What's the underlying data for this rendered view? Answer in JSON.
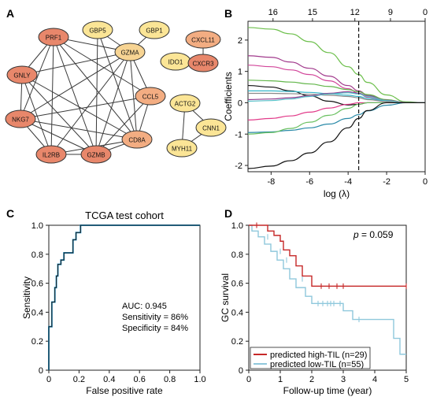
{
  "panels": {
    "A": {
      "label": "A",
      "node_colors": {
        "dark": "#e8876b",
        "mid": "#f3ad82",
        "light": "#f7d493",
        "yellow": "#fbe596"
      },
      "nodes": [
        {
          "id": "prf1",
          "label": "PRF1",
          "tone": "dark"
        },
        {
          "id": "gbp5",
          "label": "GBP5",
          "tone": "yellow"
        },
        {
          "id": "gbp1",
          "label": "GBP1",
          "tone": "yellow"
        },
        {
          "id": "gzma",
          "label": "GZMA",
          "tone": "light"
        },
        {
          "id": "cxcl11",
          "label": "CXCL11",
          "tone": "mid"
        },
        {
          "id": "gnly",
          "label": "GNLY",
          "tone": "dark"
        },
        {
          "id": "ido1",
          "label": "IDO1",
          "tone": "yellow"
        },
        {
          "id": "cxcr3",
          "label": "CXCR3",
          "tone": "dark"
        },
        {
          "id": "ccl5",
          "label": "CCL5",
          "tone": "mid"
        },
        {
          "id": "actg2",
          "label": "ACTG2",
          "tone": "yellow"
        },
        {
          "id": "nkg7",
          "label": "NKG7",
          "tone": "dark"
        },
        {
          "id": "cnn1",
          "label": "CNN1",
          "tone": "yellow"
        },
        {
          "id": "cd8a",
          "label": "CD8A",
          "tone": "mid"
        },
        {
          "id": "il2rb",
          "label": "IL2RB",
          "tone": "dark"
        },
        {
          "id": "gzmb",
          "label": "GZMB",
          "tone": "dark"
        },
        {
          "id": "myh11",
          "label": "MYH11",
          "tone": "yellow"
        }
      ],
      "edges": [
        [
          "prf1",
          "gnly"
        ],
        [
          "prf1",
          "nkg7"
        ],
        [
          "prf1",
          "il2rb"
        ],
        [
          "prf1",
          "gzmb"
        ],
        [
          "prf1",
          "gzma"
        ],
        [
          "prf1",
          "cd8a"
        ],
        [
          "prf1",
          "ccl5"
        ],
        [
          "gnly",
          "nkg7"
        ],
        [
          "gnly",
          "il2rb"
        ],
        [
          "gnly",
          "gzmb"
        ],
        [
          "gnly",
          "gzma"
        ],
        [
          "gnly",
          "cd8a"
        ],
        [
          "nkg7",
          "il2rb"
        ],
        [
          "nkg7",
          "gzmb"
        ],
        [
          "nkg7",
          "gzma"
        ],
        [
          "nkg7",
          "cd8a"
        ],
        [
          "nkg7",
          "ccl5"
        ],
        [
          "il2rb",
          "gzmb"
        ],
        [
          "il2rb",
          "gzma"
        ],
        [
          "il2rb",
          "cd8a"
        ],
        [
          "gzmb",
          "gzma"
        ],
        [
          "gzmb",
          "cd8a"
        ],
        [
          "gzmb",
          "ccl5"
        ],
        [
          "gzmb",
          "gbp5"
        ],
        [
          "gzma",
          "cd8a"
        ],
        [
          "gzma",
          "ccl5"
        ],
        [
          "gzma",
          "gbp5"
        ],
        [
          "gzma",
          "gbp1"
        ],
        [
          "cd8a",
          "ccl5"
        ],
        [
          "cd8a",
          "gbp5"
        ],
        [
          "cxcl11",
          "cxcr3"
        ],
        [
          "actg2",
          "cnn1"
        ],
        [
          "actg2",
          "myh11"
        ],
        [
          "cnn1",
          "myh11"
        ]
      ]
    },
    "B": {
      "label": "B",
      "chart_data": {
        "type": "line",
        "xlabel": "log (λ)",
        "ylabel": "Coefficients",
        "xlim": [
          -9.2,
          0
        ],
        "ylim": [
          -2.2,
          2.6
        ],
        "xticks": [
          -8,
          -6,
          -4,
          -2,
          0
        ],
        "yticks": [
          -2,
          -1,
          0,
          1,
          2
        ],
        "top_axis_ticks": [
          {
            "x": -7.9,
            "label": "16"
          },
          {
            "x": -5.85,
            "label": "15"
          },
          {
            "x": -3.65,
            "label": "12"
          },
          {
            "x": -1.8,
            "label": "9"
          },
          {
            "x": 0,
            "label": "0"
          }
        ],
        "selected_log_lambda": -3.45,
        "x": [
          -9.2,
          -8,
          -7,
          -6,
          -5,
          -4,
          -3.45,
          -3,
          -2,
          -1,
          0
        ],
        "series": [
          {
            "color": "#6cbf4b",
            "values": [
              2.4,
              2.35,
              2.2,
              1.95,
              1.6,
              1.15,
              0.9,
              0.65,
              0.25,
              0.03,
              0
            ]
          },
          {
            "color": "#a13a8c",
            "values": [
              1.5,
              1.45,
              1.3,
              1.1,
              0.85,
              0.55,
              0.38,
              0.25,
              0.08,
              0,
              0
            ]
          },
          {
            "color": "#d2469a",
            "values": [
              1.2,
              1.15,
              1.05,
              0.9,
              0.7,
              0.45,
              0.3,
              0.18,
              0.05,
              0,
              0
            ]
          },
          {
            "color": "#62b64a",
            "values": [
              0.72,
              0.7,
              0.66,
              0.6,
              0.52,
              0.42,
              0.35,
              0.26,
              0.1,
              0.01,
              0
            ]
          },
          {
            "color": "#111111",
            "values": [
              0.55,
              0.5,
              0.38,
              0.22,
              0.05,
              -0.07,
              -0.05,
              0,
              0,
              0,
              0
            ]
          },
          {
            "color": "#35b6c8",
            "values": [
              0.38,
              0.38,
              0.36,
              0.33,
              0.29,
              0.24,
              0.2,
              0.14,
              0.05,
              0,
              0
            ]
          },
          {
            "color": "#888888",
            "values": [
              0.3,
              0.3,
              0.29,
              0.27,
              0.24,
              0.2,
              0.16,
              0.1,
              0.04,
              0,
              0
            ]
          },
          {
            "color": "#8f3c8f",
            "values": [
              0.1,
              0.12,
              0.16,
              0.22,
              0.3,
              0.35,
              0.3,
              0.22,
              0.08,
              0.01,
              0
            ]
          },
          {
            "color": "#55c0c8",
            "values": [
              0.05,
              0.07,
              0.12,
              0.2,
              0.28,
              0.32,
              0.28,
              0.2,
              0.07,
              0,
              0
            ]
          },
          {
            "color": "#e23c8a",
            "values": [
              -0.55,
              -0.5,
              -0.42,
              -0.3,
              -0.17,
              -0.05,
              0,
              0,
              0,
              0,
              0
            ]
          },
          {
            "color": "#2a8aa8",
            "values": [
              -0.95,
              -0.93,
              -0.88,
              -0.8,
              -0.68,
              -0.5,
              -0.38,
              -0.26,
              -0.08,
              0,
              0
            ]
          },
          {
            "color": "#6ac060",
            "values": [
              -1.0,
              -0.95,
              -0.82,
              -0.62,
              -0.4,
              -0.18,
              -0.05,
              0,
              0,
              0,
              0
            ]
          },
          {
            "color": "#111111",
            "values": [
              -2.1,
              -2.02,
              -1.85,
              -1.6,
              -1.25,
              -0.8,
              -0.5,
              -0.25,
              0,
              0,
              0
            ]
          }
        ]
      }
    },
    "C": {
      "label": "C",
      "chart_data": {
        "type": "line",
        "title": "TCGA test cohort",
        "xlabel": "False positive rate",
        "ylabel": "Sensitivity",
        "xlim": [
          0,
          1
        ],
        "ylim": [
          0,
          1
        ],
        "xticks": [
          0,
          0.2,
          0.4,
          0.6,
          0.8,
          1.0
        ],
        "xtick_labels": [
          "0",
          "0.2",
          "0.4",
          "0.6",
          "0.8",
          "1.0"
        ],
        "yticks": [
          0,
          0.2,
          0.4,
          0.6,
          0.8,
          1.0
        ],
        "ytick_labels": [
          "0",
          "0.2",
          "0.4",
          "0.6",
          "0.8",
          "1.0"
        ],
        "series": [
          {
            "color": "#2a9fd6",
            "x": [
              0,
              0,
              0.02,
              0.02,
              0.04,
              0.04,
              0.05,
              0.05,
              0.06,
              0.06,
              0.08,
              0.08,
              0.1,
              0.1,
              0.13,
              0.13,
              0.16,
              0.16,
              0.18,
              0.18,
              0.21,
              0.21,
              1.0
            ],
            "y": [
              0,
              0.3,
              0.3,
              0.47,
              0.47,
              0.57,
              0.57,
              0.65,
              0.65,
              0.73,
              0.73,
              0.76,
              0.76,
              0.81,
              0.81,
              0.81,
              0.81,
              0.9,
              0.9,
              0.95,
              0.95,
              1.0,
              1.0
            ]
          },
          {
            "color": "#1a1a1a",
            "x": [
              0,
              0,
              0.02,
              0.02,
              0.04,
              0.04,
              0.05,
              0.05,
              0.06,
              0.06,
              0.08,
              0.08,
              0.1,
              0.1,
              0.13,
              0.13,
              0.16,
              0.16,
              0.18,
              0.18,
              0.21,
              0.21,
              1.0
            ],
            "y": [
              0,
              0.3,
              0.3,
              0.47,
              0.47,
              0.57,
              0.57,
              0.65,
              0.65,
              0.73,
              0.73,
              0.76,
              0.76,
              0.81,
              0.81,
              0.81,
              0.81,
              0.9,
              0.9,
              0.95,
              0.95,
              1.0,
              1.0
            ]
          }
        ],
        "annotations": [
          "AUC: 0.945",
          "Sensitivity = 86%",
          "Specificity = 84%"
        ]
      }
    },
    "D": {
      "label": "D",
      "chart_data": {
        "type": "line",
        "xlabel": "Follow-up time (year)",
        "ylabel": "GC survival",
        "xlim": [
          0,
          5
        ],
        "ylim": [
          0,
          1
        ],
        "xticks": [
          0,
          1,
          2,
          3,
          4,
          5
        ],
        "yticks": [
          0,
          0.2,
          0.4,
          0.6,
          0.8,
          1.0
        ],
        "ytick_labels": [
          "0",
          "0.2",
          "0.4",
          "0.6",
          "0.8",
          "1.0"
        ],
        "pvalue_label": "p",
        "pvalue_text": " = 0.059",
        "series": [
          {
            "name": "predicted high-TIL (n=29)",
            "color": "#c62828",
            "x": [
              0,
              0.6,
              0.6,
              0.8,
              0.8,
              1.0,
              1.0,
              1.1,
              1.1,
              1.3,
              1.3,
              1.5,
              1.5,
              1.7,
              1.7,
              2.0,
              2.0,
              5.0
            ],
            "y": [
              1.0,
              1.0,
              0.96,
              0.96,
              0.93,
              0.93,
              0.89,
              0.89,
              0.83,
              0.83,
              0.79,
              0.79,
              0.72,
              0.72,
              0.65,
              0.65,
              0.58,
              0.58
            ],
            "censors": [
              [
                0.25,
                1.0
              ],
              [
                2.3,
                0.58
              ],
              [
                2.55,
                0.58
              ],
              [
                2.8,
                0.58
              ],
              [
                3.0,
                0.58
              ],
              [
                5.0,
                0.58
              ]
            ]
          },
          {
            "name": "predicted low-TIL (n=55)",
            "color": "#8fc8dc",
            "x": [
              0,
              0.1,
              0.1,
              0.3,
              0.3,
              0.5,
              0.5,
              0.7,
              0.7,
              0.9,
              0.9,
              1.1,
              1.1,
              1.3,
              1.3,
              1.5,
              1.5,
              1.8,
              1.8,
              2.0,
              2.0,
              3.0,
              3.0,
              3.3,
              3.3,
              4.6,
              4.6,
              4.8,
              4.8,
              5.0
            ],
            "y": [
              1.0,
              1.0,
              0.96,
              0.96,
              0.92,
              0.92,
              0.87,
              0.87,
              0.82,
              0.82,
              0.76,
              0.76,
              0.7,
              0.7,
              0.63,
              0.63,
              0.57,
              0.57,
              0.51,
              0.51,
              0.46,
              0.46,
              0.41,
              0.41,
              0.35,
              0.35,
              0.22,
              0.22,
              0.11,
              0.11
            ],
            "censors": [
              [
                0.6,
                0.92
              ],
              [
                1.0,
                0.82
              ],
              [
                1.2,
                0.76
              ],
              [
                1.7,
                0.63
              ],
              [
                2.2,
                0.46
              ],
              [
                2.35,
                0.46
              ],
              [
                2.5,
                0.46
              ],
              [
                2.6,
                0.46
              ],
              [
                2.7,
                0.46
              ],
              [
                2.9,
                0.46
              ],
              [
                3.5,
                0.35
              ]
            ]
          }
        ],
        "legend_position": "bottom-left"
      }
    }
  }
}
